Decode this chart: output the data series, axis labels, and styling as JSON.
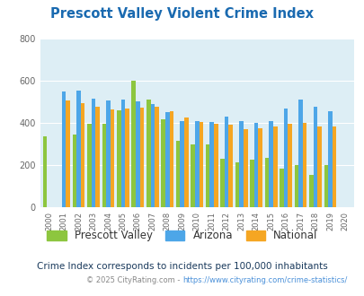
{
  "title": "Prescott Valley Violent Crime Index",
  "subtitle": "Crime Index corresponds to incidents per 100,000 inhabitants",
  "footer": "© 2025 CityRating.com - https://www.cityrating.com/crime-statistics/",
  "years": [
    2000,
    2001,
    2002,
    2003,
    2004,
    2005,
    2006,
    2007,
    2008,
    2009,
    2010,
    2011,
    2012,
    2013,
    2014,
    2015,
    2016,
    2017,
    2018,
    2019,
    2020
  ],
  "prescott_valley": [
    335,
    null,
    345,
    395,
    395,
    460,
    600,
    510,
    415,
    315,
    298,
    297,
    228,
    212,
    225,
    232,
    182,
    200,
    155,
    202,
    null
  ],
  "arizona": [
    null,
    548,
    555,
    515,
    505,
    510,
    500,
    490,
    450,
    410,
    407,
    406,
    430,
    407,
    400,
    410,
    468,
    510,
    475,
    455,
    null
  ],
  "national": [
    null,
    508,
    495,
    475,
    463,
    468,
    470,
    478,
    455,
    425,
    403,
    395,
    390,
    368,
    375,
    383,
    395,
    398,
    383,
    382,
    null
  ],
  "bar_colors": {
    "prescott_valley": "#8dc63f",
    "arizona": "#4da6e8",
    "national": "#f5a623"
  },
  "background_color": "#ddeef5",
  "ylim": [
    0,
    800
  ],
  "yticks": [
    0,
    200,
    400,
    600,
    800
  ],
  "title_color": "#1a6ab0",
  "subtitle_color": "#1a3a5c",
  "footer_color": "#888888",
  "footer_link_color": "#4a90d9",
  "legend_text_color": "#333333"
}
